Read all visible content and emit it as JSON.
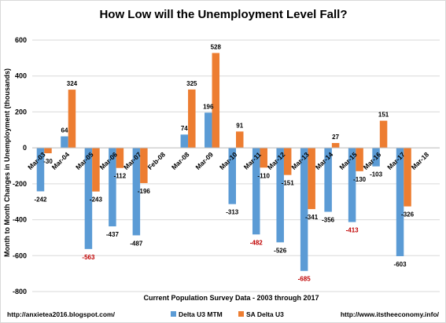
{
  "chart_data": {
    "type": "bar",
    "title": "How Low will the Unemployment Level Fall?",
    "xlabel": "Current Population Survey Data - 2003 through 2017",
    "ylabel": "Month to Month Changes in Unemployment (thousands)",
    "ylim": [
      -800,
      600
    ],
    "yticks": [
      -800,
      -600,
      -400,
      -200,
      0,
      200,
      400,
      600
    ],
    "grid": true,
    "legend_position": "bottom",
    "categories": [
      "Mar-03",
      "Mar-04",
      "Mar-05",
      "Mar-06",
      "Mar-07",
      "Feb-08",
      "Mar-08",
      "Mar-09",
      "Mar-10",
      "Mar-11",
      "Mar-12",
      "Mar-13",
      "Mar-14",
      "Mar-15",
      "Mar-16",
      "Mar-17",
      "Mar-18"
    ],
    "series": [
      {
        "name": "Delta U3 MTM",
        "color": "#5b9bd5",
        "values": [
          -242,
          64,
          -563,
          -437,
          -487,
          null,
          74,
          196,
          -313,
          -482,
          -526,
          -685,
          -356,
          -413,
          -103,
          -603,
          null
        ],
        "labels": [
          "-242",
          "64",
          "-563",
          "-437",
          "-487",
          "",
          "74",
          "196",
          "-313",
          "-482",
          "-526",
          "-685",
          "-356",
          "-413",
          "-103",
          "-603",
          ""
        ]
      },
      {
        "name": "SA Delta U3",
        "color": "#ed7d31",
        "values": [
          -30,
          324,
          -243,
          -112,
          -196,
          null,
          325,
          528,
          91,
          -110,
          -151,
          -341,
          27,
          -130,
          151,
          -326,
          null
        ],
        "labels": [
          "-30",
          "324",
          "-243",
          "-112",
          "-196",
          "",
          "325",
          "528",
          "91",
          "-110",
          "-151",
          "-341",
          "27",
          "-130",
          "151",
          "-326",
          ""
        ]
      }
    ],
    "highlight_color": "#c00000",
    "highlighted_labels": [
      "-563",
      "-482",
      "-685",
      "-413"
    ]
  },
  "footer": {
    "left": "http://anxietea2016.blogspot.com/",
    "right": "http://www.itstheeconomy.info/"
  }
}
